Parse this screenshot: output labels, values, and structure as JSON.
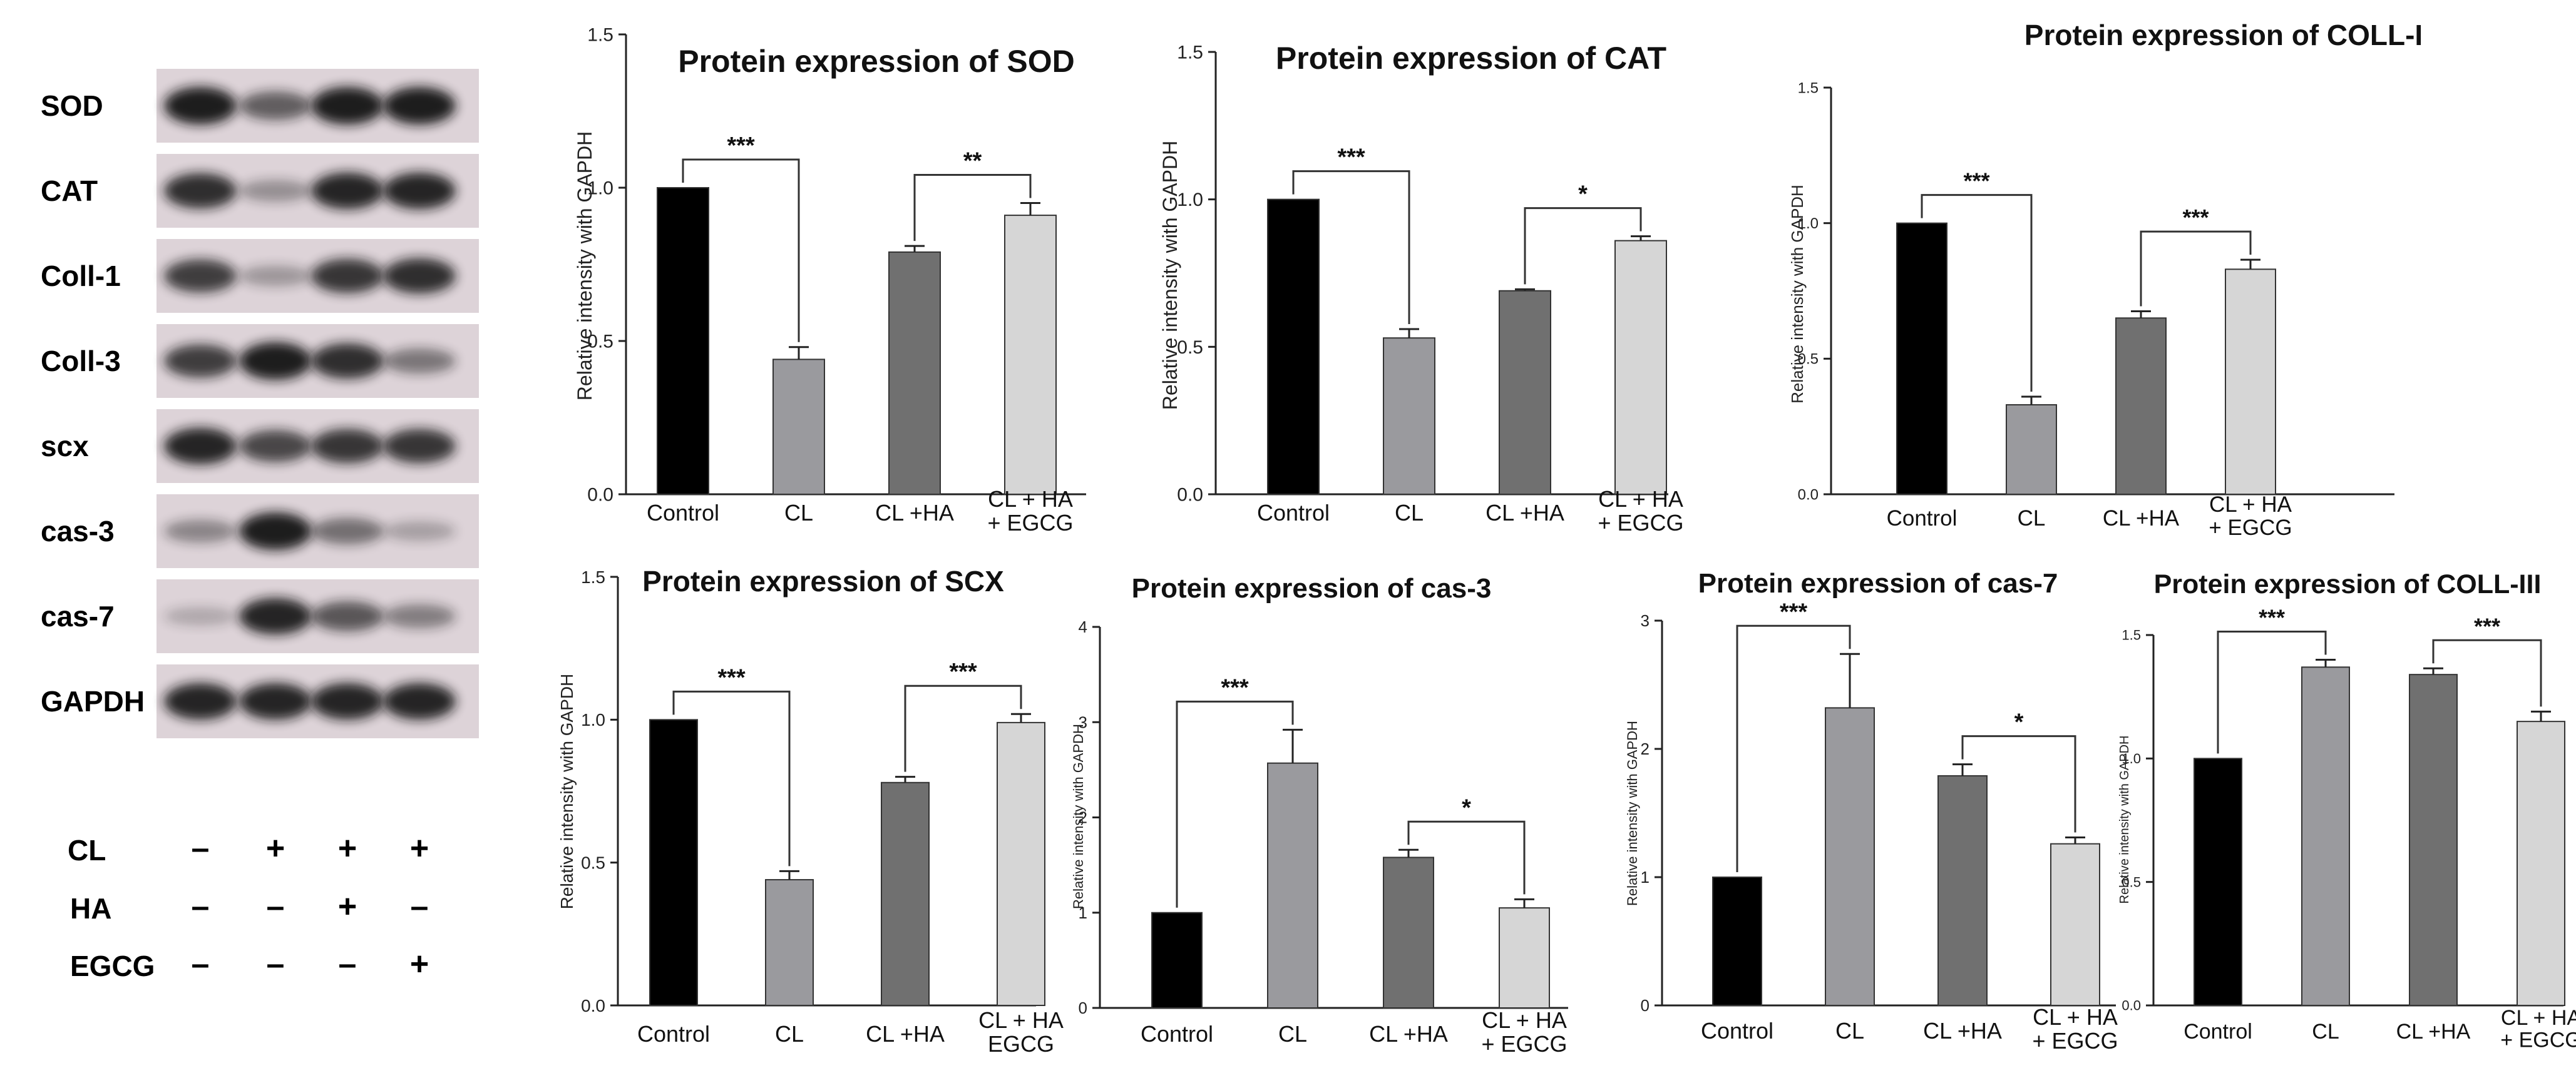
{
  "blot_panel": {
    "proteins": [
      "SOD",
      "CAT",
      "Coll-1",
      "Coll-3",
      "scx",
      "cas-3",
      "cas-7",
      "GAPDH"
    ],
    "band_intensity": [
      [
        0.95,
        0.55,
        0.95,
        0.95
      ],
      [
        0.85,
        0.25,
        0.9,
        0.9
      ],
      [
        0.75,
        0.2,
        0.8,
        0.85
      ],
      [
        0.75,
        0.95,
        0.85,
        0.4
      ],
      [
        0.9,
        0.7,
        0.8,
        0.8
      ],
      [
        0.3,
        0.95,
        0.45,
        0.15
      ],
      [
        0.1,
        0.9,
        0.6,
        0.35
      ],
      [
        0.9,
        0.9,
        0.9,
        0.9
      ]
    ],
    "treatments": [
      {
        "label": "CL",
        "signs": [
          "–",
          "+",
          "+",
          "+"
        ]
      },
      {
        "label": "HA",
        "signs": [
          "–",
          "–",
          "+",
          "–"
        ]
      },
      {
        "label": "EGCG",
        "signs": [
          "–",
          "–",
          "–",
          "+"
        ]
      }
    ]
  },
  "colors": {
    "bars": [
      "#000000",
      "#9a9a9e",
      "#707070",
      "#d6d6d6"
    ],
    "blot_bg": "#ddd3d8",
    "band": "#151515"
  },
  "chart_data": [
    {
      "type": "bar",
      "title": "Protein expression of SOD",
      "ylabel": "Relative intensity with GAPDH",
      "categories": [
        "Control",
        "CL",
        "CL +HA",
        "CL + HA|+ EGCG"
      ],
      "values": [
        1.0,
        0.44,
        0.79,
        0.91
      ],
      "errors": [
        0.0,
        0.04,
        0.02,
        0.04
      ],
      "ylim": [
        0,
        1.5
      ],
      "ticks": [
        0.0,
        0.5,
        1.0,
        1.5
      ],
      "tick_labels": [
        "0.0",
        "0.5",
        "1.0",
        "1.5"
      ],
      "significance": [
        {
          "from": 0,
          "to": 1,
          "label": "***"
        },
        {
          "from": 2,
          "to": 3,
          "label": "**"
        }
      ]
    },
    {
      "type": "bar",
      "title": "Protein expression of CAT",
      "ylabel": "Relative intensity with GAPDH",
      "categories": [
        "Control",
        "CL",
        "CL +HA",
        "CL + HA|+ EGCG"
      ],
      "values": [
        1.0,
        0.53,
        0.69,
        0.86
      ],
      "errors": [
        0.0,
        0.03,
        0.005,
        0.015
      ],
      "ylim": [
        0,
        1.5
      ],
      "ticks": [
        0.0,
        0.5,
        1.0,
        1.5
      ],
      "tick_labels": [
        "0.0",
        "0.5",
        "1.0",
        "1.5"
      ],
      "significance": [
        {
          "from": 0,
          "to": 1,
          "label": "***"
        },
        {
          "from": 2,
          "to": 3,
          "label": "*"
        }
      ]
    },
    {
      "type": "bar",
      "title": "Protein expression of COLL-I",
      "ylabel": "Relative intensity with GAPDH",
      "categories": [
        "Control",
        "CL",
        "CL +HA",
        "CL + HA|+ EGCG"
      ],
      "values": [
        1.0,
        0.33,
        0.65,
        0.83
      ],
      "errors": [
        0.0,
        0.03,
        0.025,
        0.035
      ],
      "ylim": [
        0,
        1.5
      ],
      "ticks": [
        0.0,
        0.5,
        1.0,
        1.5
      ],
      "tick_labels": [
        "0.0",
        "0.5",
        "1.0",
        "1.5"
      ],
      "significance": [
        {
          "from": 0,
          "to": 1,
          "label": "***"
        },
        {
          "from": 2,
          "to": 3,
          "label": "***"
        }
      ]
    },
    {
      "type": "bar",
      "title": "Protein expression of SCX",
      "ylabel": "Relative intensity with GAPDH",
      "categories": [
        "Control",
        "CL",
        "CL +HA",
        "CL + HA|EGCG"
      ],
      "values": [
        1.0,
        0.44,
        0.78,
        0.99
      ],
      "errors": [
        0.0,
        0.03,
        0.02,
        0.03
      ],
      "ylim": [
        0,
        1.5
      ],
      "ticks": [
        0.0,
        0.5,
        1.0,
        1.5
      ],
      "tick_labels": [
        "0.0",
        "0.5",
        "1.0",
        "1.5"
      ],
      "significance": [
        {
          "from": 0,
          "to": 1,
          "label": "***"
        },
        {
          "from": 2,
          "to": 3,
          "label": "***"
        }
      ]
    },
    {
      "type": "bar",
      "title": "Protein expression of cas-3",
      "ylabel": "Relative intensity with GAPDH",
      "categories": [
        "Control",
        "CL",
        "CL +HA",
        "CL + HA|+ EGCG"
      ],
      "values": [
        1.0,
        2.57,
        1.58,
        1.05
      ],
      "errors": [
        0.0,
        0.35,
        0.08,
        0.09
      ],
      "ylim": [
        0,
        4
      ],
      "ticks": [
        0,
        1,
        2,
        3,
        4
      ],
      "tick_labels": [
        "0",
        "1",
        "2",
        "3",
        "4"
      ],
      "significance": [
        {
          "from": 0,
          "to": 1,
          "label": "***"
        },
        {
          "from": 2,
          "to": 3,
          "label": "*"
        }
      ]
    },
    {
      "type": "bar",
      "title": "Protein expression of cas-7",
      "ylabel": "Relative intensity with GAPDH",
      "categories": [
        "Control",
        "CL",
        "CL +HA",
        "CL + HA|+ EGCG"
      ],
      "values": [
        1.0,
        2.32,
        1.79,
        1.26
      ],
      "errors": [
        0.0,
        0.42,
        0.09,
        0.05
      ],
      "ylim": [
        0,
        3
      ],
      "ticks": [
        0,
        1,
        2,
        3
      ],
      "tick_labels": [
        "0",
        "1",
        "2",
        "3"
      ],
      "significance": [
        {
          "from": 0,
          "to": 1,
          "label": "***"
        },
        {
          "from": 2,
          "to": 3,
          "label": "*"
        }
      ]
    },
    {
      "type": "bar",
      "title": "Protein expression of COLL-III",
      "ylabel": "Relative intensity with GAPDH",
      "categories": [
        "Control",
        "CL",
        "CL +HA",
        "CL + HA|+ EGCG"
      ],
      "values": [
        1.0,
        1.37,
        1.34,
        1.15
      ],
      "errors": [
        0.0,
        0.03,
        0.025,
        0.04
      ],
      "ylim": [
        0,
        1.5
      ],
      "ticks": [
        0.0,
        0.5,
        1.0,
        1.5
      ],
      "tick_labels": [
        "0.0",
        "0.5",
        "1.0",
        "1.5"
      ],
      "significance": [
        {
          "from": 0,
          "to": 1,
          "label": "***"
        },
        {
          "from": 2,
          "to": 3,
          "label": "***"
        }
      ]
    }
  ]
}
